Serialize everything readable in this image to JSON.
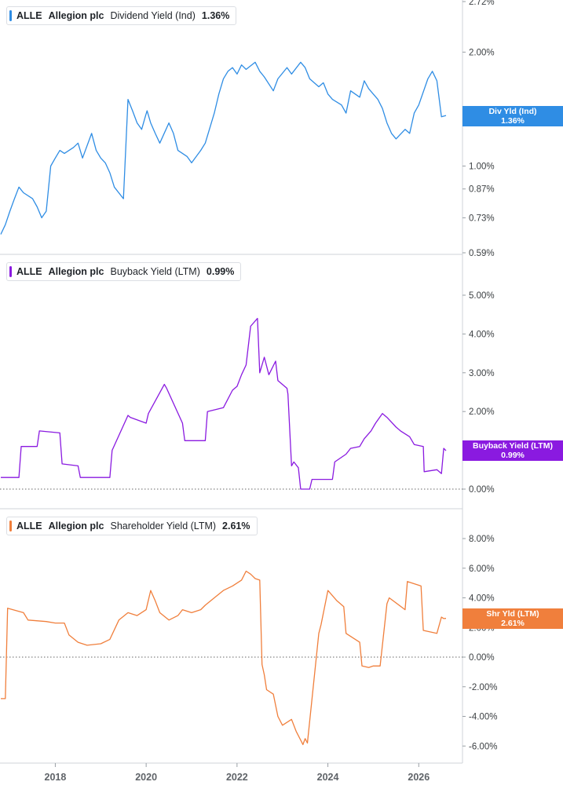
{
  "colors": {
    "dividend": "#2f8de4",
    "buyback": "#8a1ae0",
    "shareholder": "#f07f3c"
  },
  "panels": [
    {
      "ticker": "ALLE",
      "company": "Allegion plc",
      "metric": "Dividend Yield (Ind)",
      "value": "1.36%",
      "tag_label": "Div Yld (Ind)",
      "tag_value": "1.36%",
      "y_ticks": [
        "2.72%",
        "2.00%",
        "1.00%",
        "0.87%",
        "0.73%",
        "0.59%"
      ]
    },
    {
      "ticker": "ALLE",
      "company": "Allegion plc",
      "metric": "Buyback Yield (LTM)",
      "value": "0.99%",
      "tag_label": "Buyback Yield (LTM)",
      "tag_value": "0.99%",
      "y_ticks": [
        "5.00%",
        "4.00%",
        "3.00%",
        "2.00%",
        "0.00%"
      ]
    },
    {
      "ticker": "ALLE",
      "company": "Allegion plc",
      "metric": "Shareholder Yield (LTM)",
      "value": "2.61%",
      "tag_label": "Shr Yld (LTM)",
      "tag_value": "2.61%",
      "y_ticks": [
        "8.00%",
        "6.00%",
        "4.00%",
        "2.00%",
        "0.00%",
        "-2.00%",
        "-4.00%",
        "-6.00%"
      ]
    }
  ],
  "x_ticks": [
    "2018",
    "2020",
    "2022",
    "2024",
    "2026"
  ],
  "chart_data": [
    {
      "type": "line",
      "name": "Dividend Yield (Ind)",
      "scale": "log",
      "x": [
        2016.8,
        2016.9,
        2017.0,
        2017.1,
        2017.2,
        2017.3,
        2017.5,
        2017.6,
        2017.7,
        2017.8,
        2017.9,
        2018.0,
        2018.1,
        2018.2,
        2018.4,
        2018.5,
        2018.6,
        2018.8,
        2018.9,
        2019.0,
        2019.1,
        2019.2,
        2019.3,
        2019.5,
        2019.6,
        2019.7,
        2019.8,
        2019.9,
        2019.98,
        2020.02,
        2020.1,
        2020.2,
        2020.3,
        2020.5,
        2020.6,
        2020.7,
        2020.9,
        2021.0,
        2021.2,
        2021.3,
        2021.5,
        2021.6,
        2021.7,
        2021.8,
        2021.9,
        2022.0,
        2022.1,
        2022.2,
        2022.4,
        2022.5,
        2022.6,
        2022.8,
        2022.9,
        2023.1,
        2023.2,
        2023.4,
        2023.5,
        2023.6,
        2023.8,
        2023.9,
        2024.0,
        2024.1,
        2024.3,
        2024.4,
        2024.5,
        2024.7,
        2024.8,
        2024.9,
        2025.1,
        2025.2,
        2025.3,
        2025.4,
        2025.5,
        2025.7,
        2025.8,
        2025.9,
        2026.0,
        2026.2,
        2026.3,
        2026.4,
        2026.5,
        2026.6
      ],
      "y": [
        0.66,
        0.7,
        0.76,
        0.82,
        0.88,
        0.85,
        0.82,
        0.78,
        0.73,
        0.76,
        1.0,
        1.05,
        1.1,
        1.08,
        1.12,
        1.15,
        1.05,
        1.22,
        1.1,
        1.05,
        1.02,
        0.96,
        0.88,
        0.82,
        1.5,
        1.4,
        1.3,
        1.25,
        1.35,
        1.4,
        1.3,
        1.22,
        1.15,
        1.3,
        1.22,
        1.1,
        1.06,
        1.02,
        1.1,
        1.15,
        1.38,
        1.55,
        1.7,
        1.78,
        1.82,
        1.75,
        1.85,
        1.8,
        1.88,
        1.78,
        1.72,
        1.58,
        1.7,
        1.82,
        1.75,
        1.88,
        1.82,
        1.7,
        1.62,
        1.66,
        1.55,
        1.5,
        1.45,
        1.38,
        1.58,
        1.52,
        1.68,
        1.6,
        1.5,
        1.42,
        1.3,
        1.22,
        1.18,
        1.25,
        1.22,
        1.38,
        1.45,
        1.7,
        1.78,
        1.68,
        1.35,
        1.36
      ],
      "ylim": [
        0.59,
        2.72
      ],
      "y_ticks": [
        2.72,
        2.0,
        1.0,
        0.87,
        0.73,
        0.59
      ]
    },
    {
      "type": "line",
      "name": "Buyback Yield (LTM)",
      "x": [
        2016.8,
        2017.2,
        2017.25,
        2017.6,
        2017.65,
        2018.1,
        2018.15,
        2018.5,
        2018.55,
        2019.2,
        2019.25,
        2019.6,
        2019.65,
        2020.0,
        2020.05,
        2020.4,
        2020.45,
        2020.8,
        2020.85,
        2021.3,
        2021.35,
        2021.7,
        2021.9,
        2022.0,
        2022.1,
        2022.2,
        2022.3,
        2022.45,
        2022.5,
        2022.6,
        2022.7,
        2022.85,
        2022.9,
        2023.1,
        2023.12,
        2023.2,
        2023.25,
        2023.35,
        2023.4,
        2023.6,
        2023.65,
        2024.1,
        2024.15,
        2024.4,
        2024.5,
        2024.7,
        2024.8,
        2024.95,
        2025.05,
        2025.2,
        2025.3,
        2025.5,
        2025.6,
        2025.8,
        2025.9,
        2026.1,
        2026.12,
        2026.4,
        2026.5,
        2026.55,
        2026.6
      ],
      "y": [
        0.3,
        0.3,
        1.1,
        1.1,
        1.5,
        1.45,
        0.65,
        0.6,
        0.3,
        0.3,
        1.0,
        1.9,
        1.85,
        1.7,
        1.95,
        2.7,
        2.6,
        1.7,
        1.25,
        1.25,
        2.0,
        2.1,
        2.55,
        2.65,
        2.95,
        3.2,
        4.2,
        4.4,
        3.0,
        3.4,
        2.95,
        3.3,
        2.8,
        2.6,
        2.45,
        0.6,
        0.7,
        0.55,
        0.0,
        0.0,
        0.25,
        0.25,
        0.7,
        0.9,
        1.05,
        1.1,
        1.3,
        1.5,
        1.7,
        1.95,
        1.85,
        1.6,
        1.5,
        1.35,
        1.15,
        1.1,
        0.45,
        0.5,
        0.4,
        1.05,
        0.99
      ],
      "ylim": [
        -0.3,
        5.0
      ],
      "y_ticks": [
        5.0,
        4.0,
        3.0,
        2.0,
        0.0
      ]
    },
    {
      "type": "line",
      "name": "Shareholder Yield (LTM)",
      "x": [
        2016.8,
        2016.9,
        2016.95,
        2017.3,
        2017.4,
        2017.8,
        2018.0,
        2018.2,
        2018.3,
        2018.5,
        2018.7,
        2019.0,
        2019.2,
        2019.4,
        2019.6,
        2019.8,
        2020.0,
        2020.1,
        2020.2,
        2020.3,
        2020.5,
        2020.7,
        2020.8,
        2021.0,
        2021.2,
        2021.3,
        2021.5,
        2021.7,
        2021.9,
        2022.1,
        2022.2,
        2022.3,
        2022.4,
        2022.5,
        2022.55,
        2022.6,
        2022.65,
        2022.8,
        2022.9,
        2023.0,
        2023.2,
        2023.3,
        2023.4,
        2023.45,
        2023.5,
        2023.55,
        2023.8,
        2023.85,
        2024.0,
        2024.2,
        2024.35,
        2024.4,
        2024.7,
        2024.75,
        2024.9,
        2025.0,
        2025.15,
        2025.3,
        2025.35,
        2025.7,
        2025.75,
        2026.05,
        2026.1,
        2026.4,
        2026.5,
        2026.55,
        2026.6
      ],
      "y": [
        -2.8,
        -2.8,
        3.3,
        3.0,
        2.5,
        2.4,
        2.3,
        2.3,
        1.5,
        1.0,
        0.8,
        0.9,
        1.2,
        2.5,
        3.0,
        2.8,
        3.2,
        4.5,
        3.8,
        3.0,
        2.5,
        2.8,
        3.2,
        3.0,
        3.2,
        3.5,
        4.0,
        4.5,
        4.8,
        5.2,
        5.8,
        5.6,
        5.3,
        5.2,
        -0.5,
        -1.2,
        -2.2,
        -2.5,
        -4.0,
        -4.6,
        -4.2,
        -5.0,
        -5.6,
        -5.9,
        -5.5,
        -5.8,
        1.6,
        2.2,
        4.5,
        3.8,
        3.4,
        1.6,
        1.0,
        -0.6,
        -0.7,
        -0.6,
        -0.6,
        3.6,
        4.0,
        3.2,
        5.1,
        4.8,
        1.8,
        1.6,
        2.7,
        2.6,
        2.61
      ],
      "ylim": [
        -7.5,
        9.0
      ],
      "y_ticks": [
        8.0,
        6.0,
        4.0,
        2.0,
        0.0,
        -2.0,
        -4.0,
        -6.0
      ]
    }
  ]
}
